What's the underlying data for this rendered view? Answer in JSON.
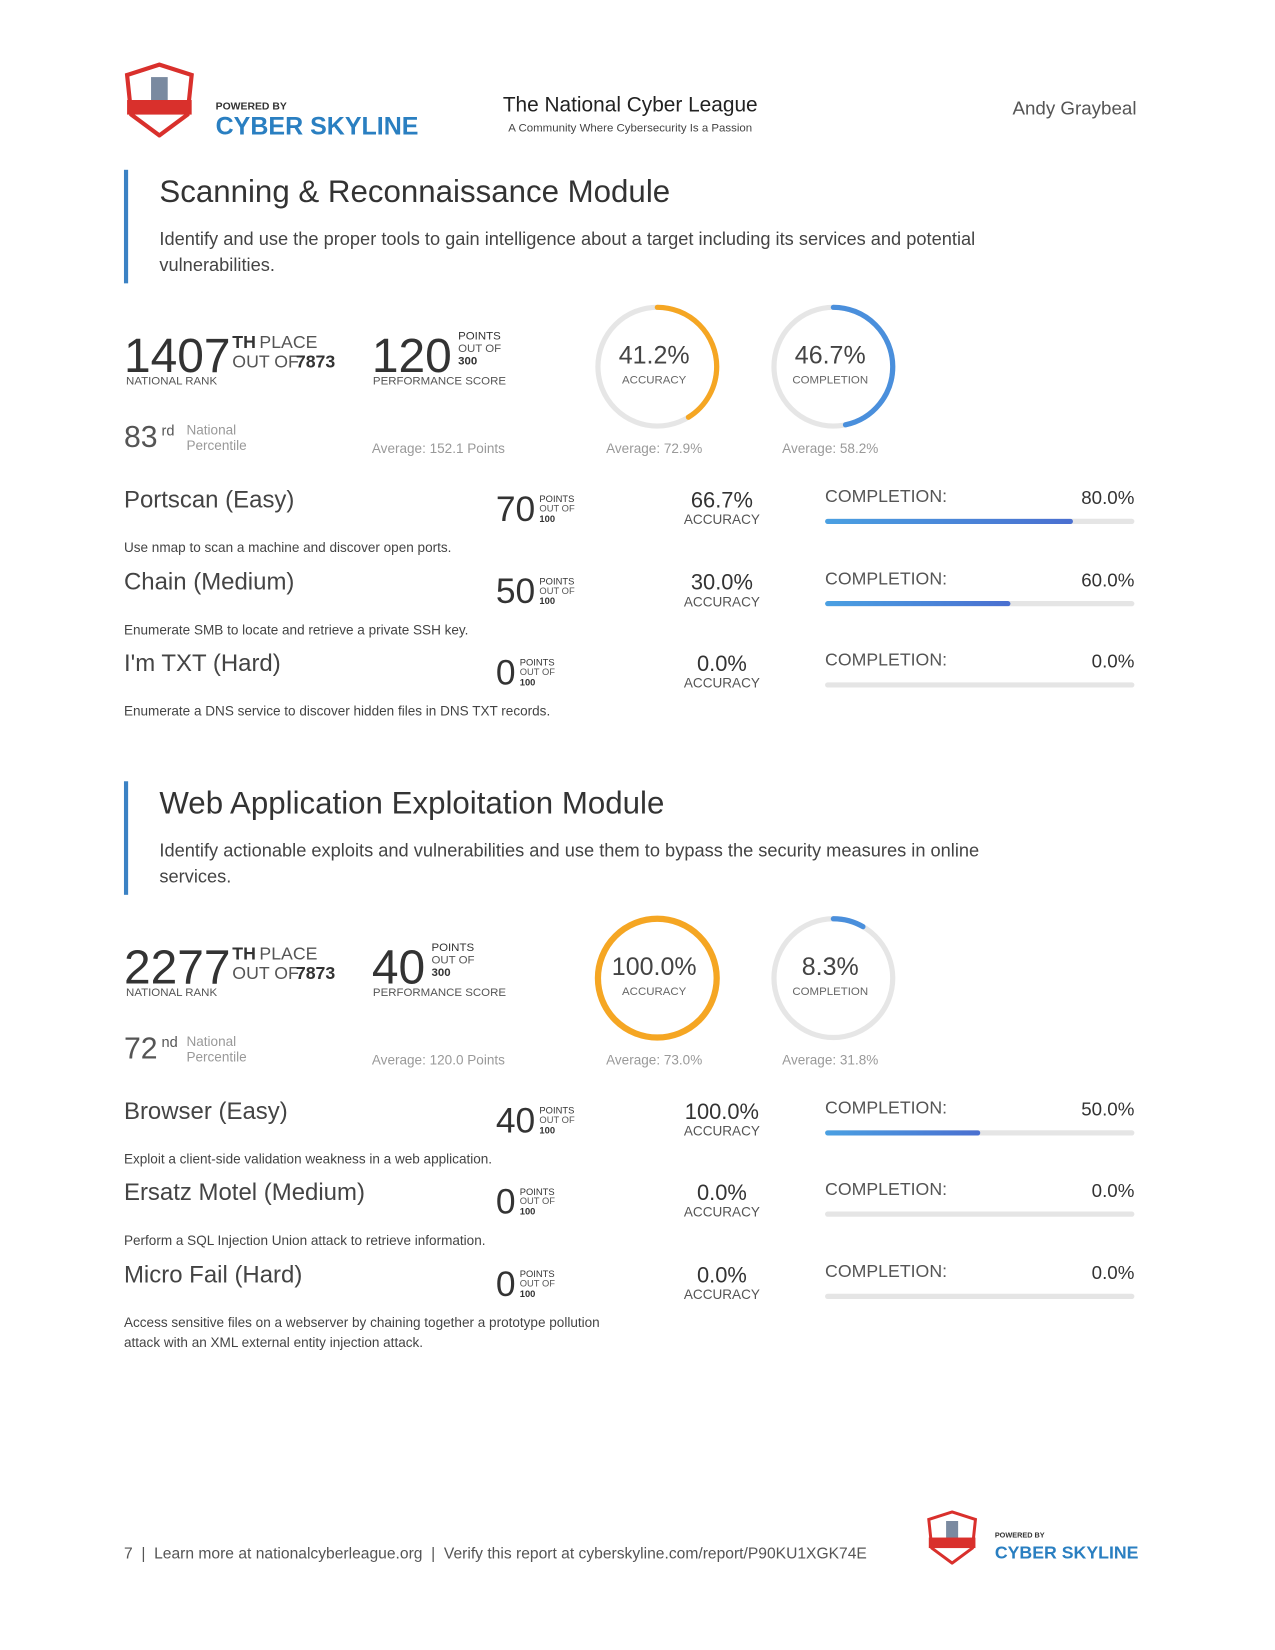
{
  "header": {
    "powered_by": "POWERED BY",
    "brand": "CYBER SKYLINE",
    "title": "The National Cyber League",
    "subtitle": "A Community Where Cybersecurity Is a Passion",
    "user": "Andy Graybeal"
  },
  "modules": [
    {
      "title": "Scanning & Reconnaissance Module",
      "description": "Identify and use the proper tools to gain intelligence about a target including its services and potential vulnerabilities.",
      "rank": {
        "value": 1407,
        "suffix": "TH",
        "place": "PLACE",
        "out_of": "OUT OF",
        "total": 7873,
        "label": "NATIONAL RANK"
      },
      "percentile": {
        "value": 83,
        "suffix": "rd",
        "label_1": "National",
        "label_2": "Percentile"
      },
      "score": {
        "value": 120,
        "points": "POINTS",
        "out_of": "OUT OF",
        "max": 300,
        "label": "PERFORMANCE SCORE",
        "average": "Average: 152.1 Points"
      },
      "accuracy": {
        "value": 41.2,
        "label": "41.2%",
        "name": "ACCURACY",
        "average": "Average: 72.9%"
      },
      "completion": {
        "value": 46.7,
        "label": "46.7%",
        "name": "COMPLETION",
        "average": "Average: 58.2%"
      },
      "challenges": [
        {
          "name": "Portscan (Easy)",
          "description": "Use nmap to scan a machine and discover open ports.",
          "points": 70,
          "points_label": "POINTS",
          "out_of": "OUT OF",
          "max": 100,
          "accuracy": {
            "value": 66.7,
            "label": "66.7%"
          },
          "accuracy_name": "ACCURACY",
          "completion_name": "COMPLETION:",
          "completion": {
            "value": 80.0,
            "label": "80.0%"
          }
        },
        {
          "name": "Chain (Medium)",
          "description": "Enumerate SMB to locate and retrieve a private SSH key.",
          "points": 50,
          "points_label": "POINTS",
          "out_of": "OUT OF",
          "max": 100,
          "accuracy": {
            "value": 30.0,
            "label": "30.0%"
          },
          "accuracy_name": "ACCURACY",
          "completion_name": "COMPLETION:",
          "completion": {
            "value": 60.0,
            "label": "60.0%"
          }
        },
        {
          "name": "I'm TXT (Hard)",
          "description": "Enumerate a DNS service to discover hidden files in DNS TXT records.",
          "points": 0,
          "points_label": "POINTS",
          "out_of": "OUT OF",
          "max": 100,
          "accuracy": {
            "value": 0.0,
            "label": "0.0%"
          },
          "accuracy_name": "ACCURACY",
          "completion_name": "COMPLETION:",
          "completion": {
            "value": 0.0,
            "label": "0.0%"
          }
        }
      ]
    },
    {
      "title": "Web Application Exploitation Module",
      "description": "Identify actionable exploits and vulnerabilities and use them to bypass the security measures in online services.",
      "rank": {
        "value": 2277,
        "suffix": "TH",
        "place": "PLACE",
        "out_of": "OUT OF",
        "total": 7873,
        "label": "NATIONAL RANK"
      },
      "percentile": {
        "value": 72,
        "suffix": "nd",
        "label_1": "National",
        "label_2": "Percentile"
      },
      "score": {
        "value": 40,
        "points": "POINTS",
        "out_of": "OUT OF",
        "max": 300,
        "label": "PERFORMANCE SCORE",
        "average": "Average: 120.0 Points"
      },
      "accuracy": {
        "value": 100.0,
        "label": "100.0%",
        "name": "ACCURACY",
        "average": "Average: 73.0%"
      },
      "completion": {
        "value": 8.3,
        "label": "8.3%",
        "name": "COMPLETION",
        "average": "Average: 31.8%"
      },
      "challenges": [
        {
          "name": "Browser (Easy)",
          "description": "Exploit a client-side validation weakness in a web application.",
          "points": 40,
          "points_label": "POINTS",
          "out_of": "OUT OF",
          "max": 100,
          "accuracy": {
            "value": 100.0,
            "label": "100.0%"
          },
          "accuracy_name": "ACCURACY",
          "completion_name": "COMPLETION:",
          "completion": {
            "value": 50.0,
            "label": "50.0%"
          }
        },
        {
          "name": "Ersatz Motel (Medium)",
          "description": "Perform a SQL Injection Union attack to retrieve information.",
          "points": 0,
          "points_label": "POINTS",
          "out_of": "OUT OF",
          "max": 100,
          "accuracy": {
            "value": 0.0,
            "label": "0.0%"
          },
          "accuracy_name": "ACCURACY",
          "completion_name": "COMPLETION:",
          "completion": {
            "value": 0.0,
            "label": "0.0%"
          }
        },
        {
          "name": "Micro Fail (Hard)",
          "description": "Access sensitive files on a webserver by chaining together a prototype pollution attack with an XML external entity injection attack.",
          "points": 0,
          "points_label": "POINTS",
          "out_of": "OUT OF",
          "max": 100,
          "accuracy": {
            "value": 0.0,
            "label": "0.0%"
          },
          "accuracy_name": "ACCURACY",
          "completion_name": "COMPLETION:",
          "completion": {
            "value": 0.0,
            "label": "0.0%"
          }
        }
      ]
    }
  ],
  "footer": {
    "text": "7  |  Learn more at nationalcyberleague.org  |  Verify this report at cyberskyline.com/report/P90KU1XGK74E",
    "powered_by": "POWERED BY",
    "brand": "CYBER SKYLINE"
  }
}
